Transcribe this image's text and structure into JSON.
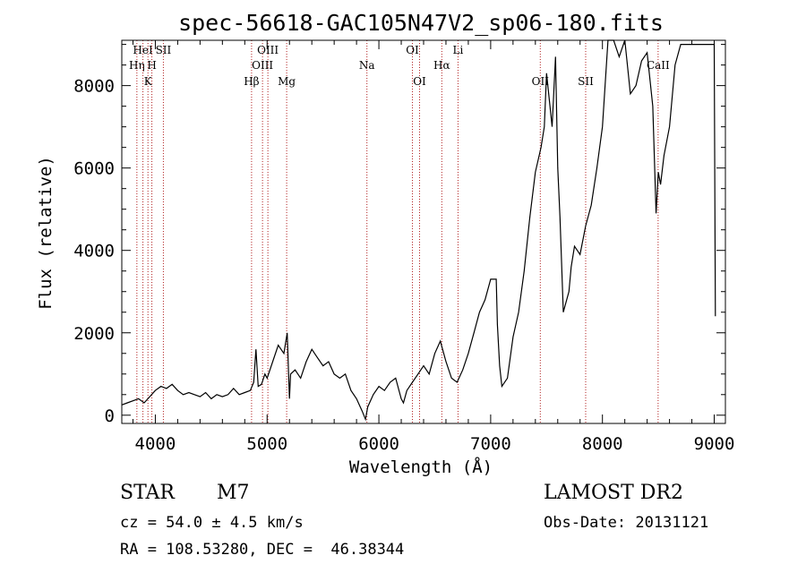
{
  "chart_data": {
    "type": "line",
    "title": "spec-56618-GAC105N47V2_sp06-180.fits",
    "xlabel": "Wavelength (Å)",
    "ylabel": "Flux (relative)",
    "xlim": [
      3700,
      9100
    ],
    "ylim": [
      -200,
      9100
    ],
    "x_ticks": [
      4000,
      5000,
      6000,
      7000,
      8000,
      9000
    ],
    "y_ticks": [
      0,
      2000,
      4000,
      6000,
      8000
    ],
    "x_tick_labels": [
      "4000",
      "5000",
      "6000",
      "7000",
      "8000",
      "9000"
    ],
    "y_tick_labels": [
      "0",
      "2000",
      "4000",
      "6000",
      "8000"
    ],
    "series": [
      {
        "color": "#000000",
        "x": [
          3700,
          3750,
          3800,
          3850,
          3900,
          3950,
          4000,
          4050,
          4100,
          4150,
          4200,
          4250,
          4300,
          4350,
          4400,
          4450,
          4500,
          4550,
          4600,
          4650,
          4700,
          4750,
          4800,
          4850,
          4880,
          4900,
          4920,
          4950,
          4980,
          5000,
          5050,
          5100,
          5150,
          5180,
          5200,
          5210,
          5250,
          5300,
          5350,
          5400,
          5450,
          5500,
          5550,
          5600,
          5650,
          5700,
          5750,
          5800,
          5850,
          5880,
          5900,
          5950,
          6000,
          6050,
          6100,
          6150,
          6200,
          6220,
          6250,
          6300,
          6350,
          6400,
          6450,
          6500,
          6550,
          6570,
          6600,
          6650,
          6700,
          6750,
          6800,
          6850,
          6900,
          6950,
          7000,
          7050,
          7060,
          7080,
          7100,
          7150,
          7200,
          7250,
          7300,
          7350,
          7400,
          7450,
          7480,
          7500,
          7550,
          7580,
          7600,
          7620,
          7650,
          7700,
          7720,
          7750,
          7800,
          7850,
          7900,
          7950,
          8000,
          8050,
          8100,
          8150,
          8200,
          8250,
          8300,
          8350,
          8400,
          8450,
          8480,
          8500,
          8520,
          8550,
          8600,
          8650,
          8700,
          8750,
          8800,
          8850,
          8900,
          8950,
          9000,
          9010
        ],
        "y": [
          250,
          300,
          350,
          400,
          300,
          450,
          600,
          700,
          650,
          750,
          600,
          500,
          550,
          500,
          450,
          550,
          400,
          500,
          450,
          500,
          650,
          500,
          550,
          600,
          800,
          1600,
          700,
          750,
          1000,
          900,
          1300,
          1700,
          1500,
          2000,
          400,
          1000,
          1100,
          900,
          1300,
          1600,
          1400,
          1200,
          1300,
          1000,
          900,
          1000,
          600,
          400,
          100,
          -100,
          200,
          500,
          700,
          600,
          800,
          900,
          400,
          300,
          600,
          800,
          1000,
          1200,
          1000,
          1500,
          1800,
          1600,
          1300,
          900,
          800,
          1100,
          1500,
          2000,
          2500,
          2800,
          3300,
          3300,
          2200,
          1200,
          700,
          900,
          1900,
          2500,
          3500,
          4800,
          5900,
          6500,
          7000,
          8300,
          7000,
          8700,
          6000,
          4800,
          2500,
          3000,
          3600,
          4100,
          3900,
          4600,
          5100,
          6000,
          7000,
          9100,
          9100,
          8700,
          9100,
          7800,
          8000,
          8600,
          8800,
          7500,
          4900,
          5900,
          5600,
          6300,
          7000,
          8500,
          9000,
          9000,
          9000,
          9000,
          9000,
          9000,
          9000,
          2400
        ]
      }
    ],
    "line_markers": [
      {
        "x": 3835,
        "label": "Hη",
        "row": 1
      },
      {
        "x": 3889,
        "label": "HeI",
        "row": 0
      },
      {
        "x": 3934,
        "label": "K",
        "row": 2
      },
      {
        "x": 3969,
        "label": "H",
        "row": 1
      },
      {
        "x": 4072,
        "label": "SII",
        "row": 0
      },
      {
        "x": 4861,
        "label": "Hβ",
        "row": 2
      },
      {
        "x": 4959,
        "label": "OIII",
        "row": 1
      },
      {
        "x": 5007,
        "label": "OIII",
        "row": 0
      },
      {
        "x": 5175,
        "label": "Mg",
        "row": 2
      },
      {
        "x": 5893,
        "label": "Na",
        "row": 1
      },
      {
        "x": 6300,
        "label": "OI",
        "row": 0
      },
      {
        "x": 6364,
        "label": "OI",
        "row": 2
      },
      {
        "x": 6563,
        "label": "Hα",
        "row": 1
      },
      {
        "x": 6708,
        "label": "Li",
        "row": 0
      },
      {
        "x": 7444,
        "label": "OII",
        "row": 2
      },
      {
        "x": 7850,
        "label": "SII",
        "row": 2
      },
      {
        "x": 8498,
        "label": "CaII",
        "row": 1
      }
    ],
    "grid": false,
    "legend": "none"
  },
  "info": {
    "object_class": "STAR",
    "subclass": "M7",
    "survey": "LAMOST DR2",
    "cz_line": "cz = 54.0 ± 4.5 km/s",
    "obs_date_line": "Obs-Date: 20131121",
    "radec_line": "RA = 108.53280, DEC =  46.38344"
  },
  "colors": {
    "spectrum": "#000000",
    "marker_lines": "#b22222",
    "background": "#ffffff"
  }
}
